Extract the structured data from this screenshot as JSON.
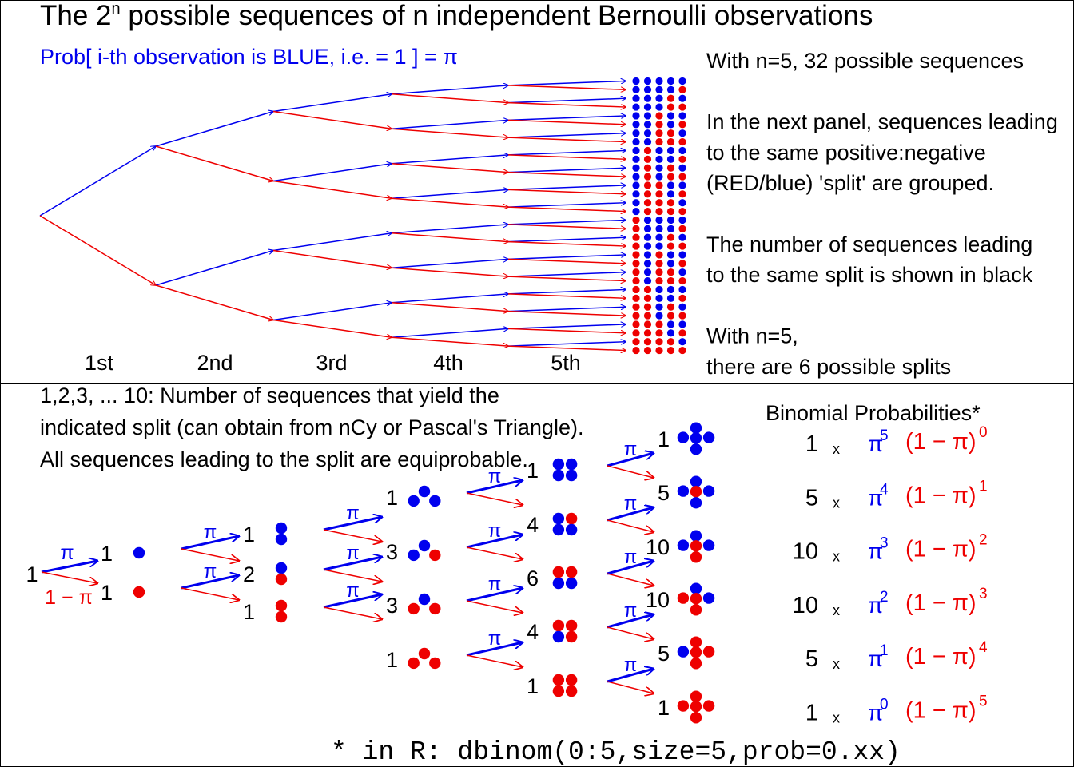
{
  "top_panel": {
    "title": {
      "pre": "The 2",
      "sup": "n",
      "post": " possible sequences of n independent Bernoulli observations"
    },
    "subtitle": "Prob[ i-th observation is BLUE, i.e. = 1 ] = π",
    "stage_labels": [
      "1st",
      "2nd",
      "3rd",
      "4th",
      "5th"
    ],
    "notes": [
      "With n=5, 32 possible sequences",
      "",
      "In the next panel, sequences leading",
      "to the same positive:negative",
      "(RED/blue) 'split' are grouped.",
      "",
      "The number of sequences leading",
      "to the same split is shown in black",
      "",
      "With n=5,",
      "there are 6 possible splits"
    ]
  },
  "bottom_panel": {
    "intro_lines": [
      "1,2,3, ... 10: Number of sequences that yield the",
      "indicated split (can obtain from nCy or Pascal's Triangle).",
      "All sequences leading to the split are equiprobable."
    ],
    "start_count": "1",
    "pi_label": "π",
    "one_minus_pi_label": "1 − π",
    "stages": [
      {
        "counts": [
          "1",
          "1"
        ]
      },
      {
        "counts": [
          "1",
          "2",
          "1"
        ]
      },
      {
        "counts": [
          "1",
          "3",
          "3",
          "1"
        ]
      },
      {
        "counts": [
          "1",
          "4",
          "6",
          "4",
          "1"
        ]
      },
      {
        "counts": [
          "1",
          "5",
          "10",
          "10",
          "5",
          "1"
        ]
      }
    ],
    "binomial": {
      "header": "Binomial Probabilities*",
      "times": "x",
      "pi": "π",
      "one_minus_pi": "(1 − π)",
      "rows": [
        {
          "coef": "1",
          "pi_exp": "5",
          "q_exp": "0"
        },
        {
          "coef": "5",
          "pi_exp": "4",
          "q_exp": "1"
        },
        {
          "coef": "10",
          "pi_exp": "3",
          "q_exp": "2"
        },
        {
          "coef": "10",
          "pi_exp": "2",
          "q_exp": "3"
        },
        {
          "coef": "5",
          "pi_exp": "1",
          "q_exp": "4"
        },
        {
          "coef": "1",
          "pi_exp": "0",
          "q_exp": "5"
        }
      ]
    },
    "footnote": "* in R: dbinom(0:5,size=5,prob=0.xx)"
  },
  "colors": {
    "blue": "#0000ee",
    "red": "#ee0000",
    "black": "#000000"
  }
}
